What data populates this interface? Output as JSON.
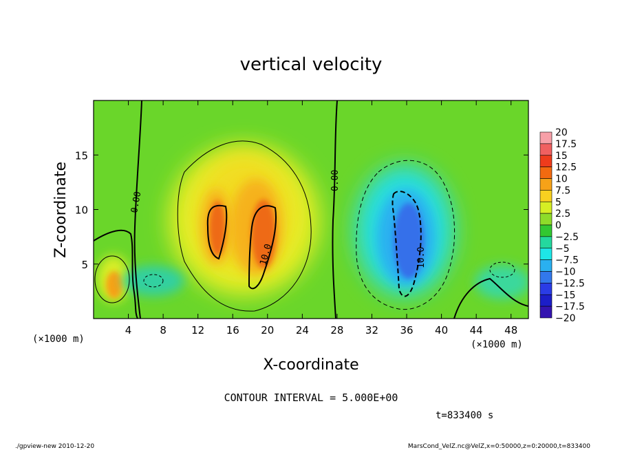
{
  "chart_data": {
    "type": "heatmap",
    "title": "vertical velocity",
    "xlabel": "X-coordinate",
    "ylabel": "Z-coordinate",
    "x_unit_left": "(×1000 m)",
    "x_unit_right": "(×1000 m)",
    "xlim": [
      0,
      50
    ],
    "ylim": [
      0,
      20
    ],
    "x_ticks": [
      4,
      8,
      12,
      16,
      20,
      24,
      28,
      32,
      36,
      40,
      44,
      48
    ],
    "y_ticks": [
      5,
      10,
      15
    ],
    "colorbar": {
      "levels": [
        "20",
        "17.5",
        "15",
        "12.5",
        "10",
        "7.5",
        "5",
        "2.5",
        "0",
        "−2.5",
        "−5",
        "−7.5",
        "−10",
        "−12.5",
        "−15",
        "−17.5",
        "−20"
      ],
      "colors": [
        "#f7a0a8",
        "#f06060",
        "#ee3c1c",
        "#f26a10",
        "#f6a218",
        "#f8d020",
        "#d6ee24",
        "#8edc2a",
        "#32c832",
        "#24d89e",
        "#1ee6e6",
        "#2ab0f0",
        "#3278ec",
        "#2a3ce6",
        "#1c1ec8",
        "#3414b0",
        "#7a1cc8"
      ]
    },
    "features": [
      {
        "kind": "updraft",
        "x": 19.5,
        "z": 8.0,
        "peak": 12.5
      },
      {
        "kind": "updraft",
        "x": 14.5,
        "z": 8.5,
        "peak": 12.5
      },
      {
        "kind": "updraft",
        "x": 2.5,
        "z": 3.5,
        "peak": 7.5
      },
      {
        "kind": "downdraft",
        "x": 36.5,
        "z": 7.0,
        "peak": -12.5
      }
    ],
    "contour_labels": [
      "0.00",
      "0.00",
      "10.0",
      "10.0"
    ],
    "contour_interval_text": "CONTOUR INTERVAL = 5.000E+00",
    "time_text": "t=833400 s"
  },
  "footer": {
    "left": "./gpview-new  2010-12-20",
    "right": "MarsCond_VelZ.nc@VelZ,x=0:50000,z=0:20000,t=833400"
  }
}
